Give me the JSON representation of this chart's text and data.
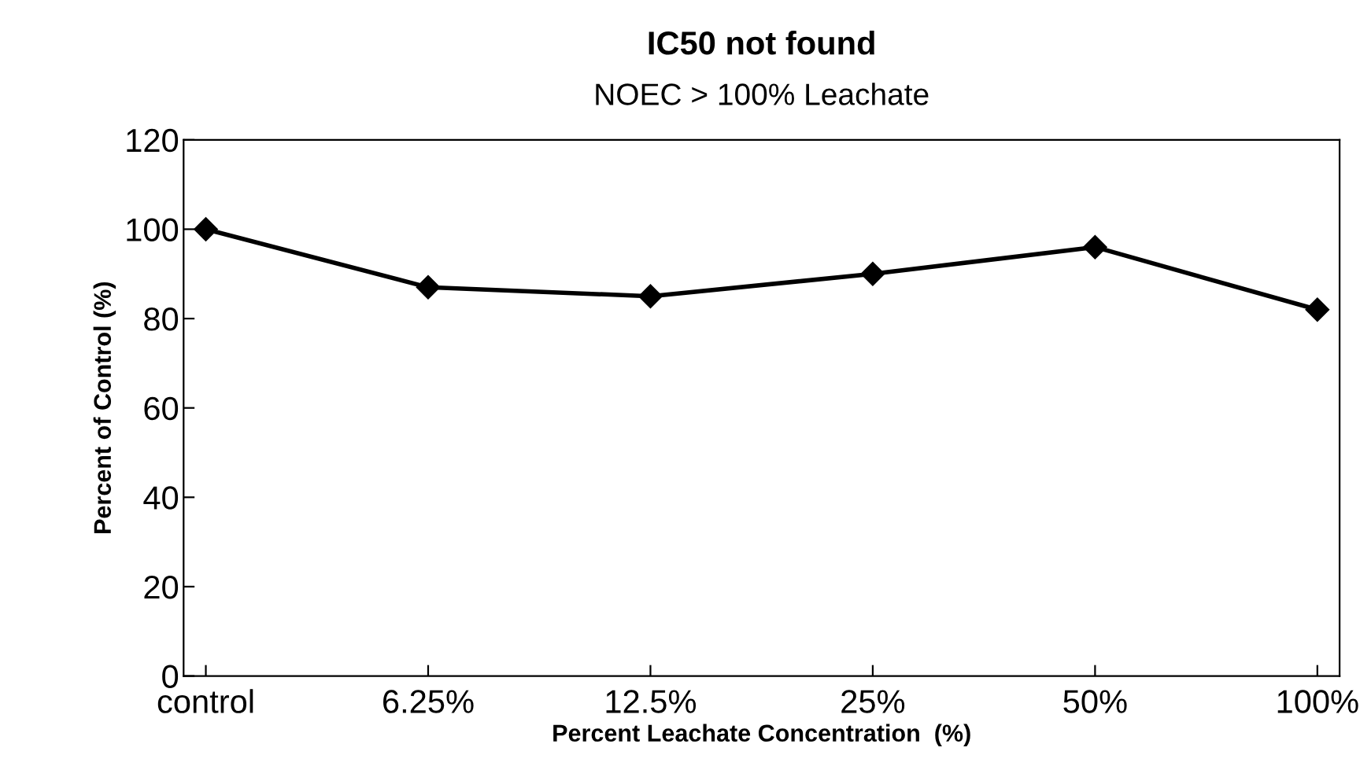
{
  "chart_data": {
    "type": "line",
    "title": "IC50 not found",
    "subtitle": "NOEC > 100% Leachate",
    "xlabel": "Percent Leachate Concentration  (%)",
    "ylabel": "Percent of Control (%)",
    "categories": [
      "control",
      "6.25%",
      "12.5%",
      "25%",
      "50%",
      "100%"
    ],
    "series": [
      {
        "color": "#000000",
        "values": [
          100,
          87,
          85,
          90,
          96,
          82
        ]
      }
    ],
    "ylim": [
      0,
      120
    ],
    "yticks": [
      0,
      20,
      40,
      60,
      80,
      100,
      120
    ],
    "marker": "diamond",
    "line_style": "solid",
    "grid": false,
    "legend": false
  }
}
